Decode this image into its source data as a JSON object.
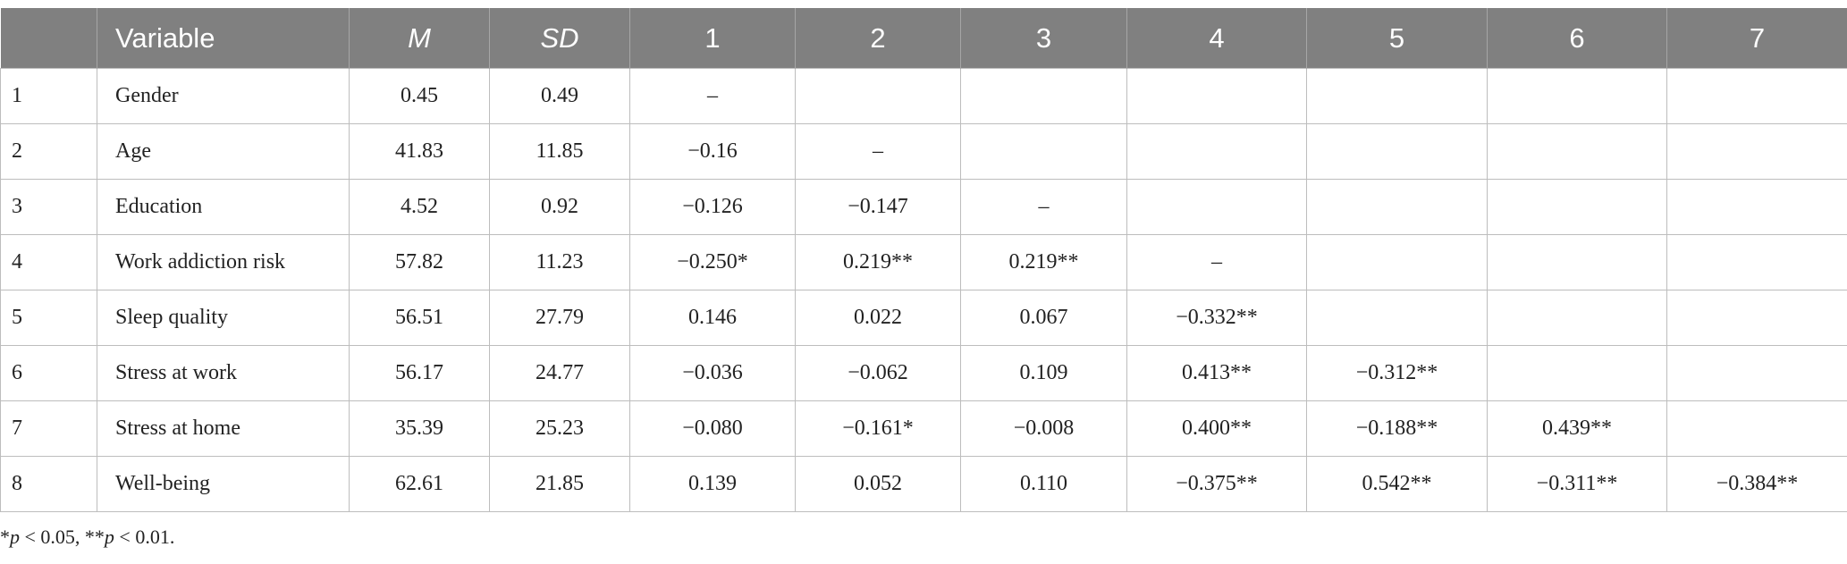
{
  "table": {
    "header": [
      "Variable",
      "M",
      "SD",
      "1",
      "2",
      "3",
      "4",
      "5",
      "6",
      "7"
    ],
    "rows": [
      [
        "1",
        "Gender",
        "0.45",
        "0.49",
        "–"
      ],
      [
        "2",
        "Age",
        "41.83",
        "11.85",
        "−0.16",
        "–"
      ],
      [
        "3",
        "Education",
        "4.52",
        "0.92",
        "−0.126",
        "−0.147",
        "–"
      ],
      [
        "4",
        "Work addiction risk",
        "57.82",
        "11.23",
        "−0.250*",
        "0.219**",
        "0.219**",
        "–"
      ],
      [
        "5",
        "Sleep quality",
        "56.51",
        "27.79",
        "0.146",
        "0.022",
        "0.067",
        "−0.332**"
      ],
      [
        "6",
        "Stress at work",
        "56.17",
        "24.77",
        "−0.036",
        "−0.062",
        "0.109",
        "0.413**",
        "−0.312**"
      ],
      [
        "7",
        "Stress at home",
        "35.39",
        "25.23",
        "−0.080",
        "−0.161*",
        "−0.008",
        "0.400**",
        "−0.188**",
        "0.439**"
      ],
      [
        "8",
        "Well-being",
        "62.61",
        "21.85",
        "0.139",
        "0.052",
        "0.110",
        "−0.375**",
        "0.542**",
        "−0.311**",
        "−0.384**"
      ]
    ]
  },
  "footnote": [
    "*",
    "p",
    " < 0.05, **",
    "p",
    " < 0.01."
  ]
}
